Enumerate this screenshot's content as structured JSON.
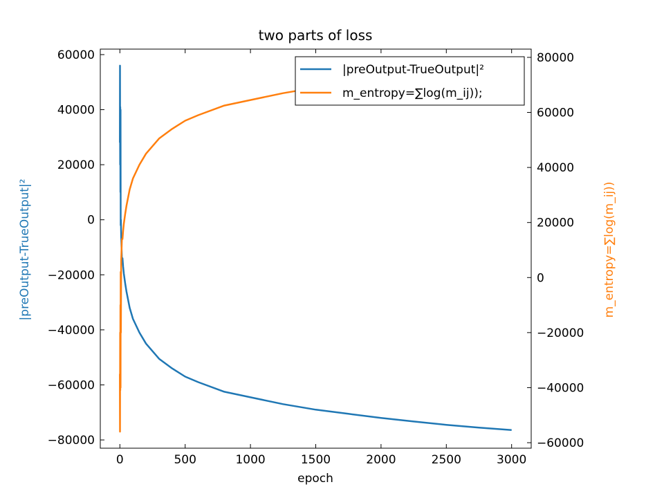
{
  "chart_data": {
    "type": "line",
    "title": "two parts of loss",
    "xlabel": "epoch",
    "xlim": [
      -150,
      3150
    ],
    "xticks": [
      0,
      500,
      1000,
      1500,
      2000,
      2500,
      3000
    ],
    "xtick_labels": [
      "0",
      "500",
      "1000",
      "1500",
      "2000",
      "2500",
      "3000"
    ],
    "y_left": {
      "label": "|preOutput-TrueOutput|²",
      "color": "#1f77b4",
      "lim": [
        -83000,
        62000
      ],
      "ticks": [
        60000,
        40000,
        20000,
        0,
        -20000,
        -40000,
        -60000,
        -80000
      ],
      "tick_labels": [
        "60000",
        "40000",
        "20000",
        "0",
        "−20000",
        "−40000",
        "−60000",
        "−80000"
      ]
    },
    "y_right": {
      "label": "m_entropy=∑log(m_ij))",
      "color": "#ff7f0e",
      "lim": [
        -62000,
        83000
      ],
      "ticks": [
        80000,
        60000,
        40000,
        20000,
        0,
        -20000,
        -40000,
        -60000
      ],
      "tick_labels": [
        "80000",
        "60000",
        "40000",
        "20000",
        "0",
        "−20000",
        "−40000",
        "−60000"
      ]
    },
    "legend": {
      "placement": "top-right"
    },
    "grid": false,
    "series": [
      {
        "name": "|preOutput-TrueOutput|²",
        "axis": "left",
        "color": "#1f77b4",
        "x": [
          0,
          1,
          2,
          3,
          4,
          5,
          6,
          8,
          10,
          12,
          15,
          20,
          25,
          30,
          40,
          50,
          75,
          100,
          150,
          200,
          300,
          400,
          500,
          600,
          800,
          1000,
          1250,
          1500,
          1750,
          2000,
          2250,
          2500,
          2750,
          3000
        ],
        "values": [
          28000,
          56000,
          20000,
          41000,
          10000,
          40000,
          -2000,
          0,
          -6000,
          -9000,
          -14000,
          -14000,
          -17000,
          -19500,
          -23000,
          -26000,
          -32000,
          -36000,
          -41000,
          -45000,
          -50500,
          -54000,
          -57000,
          -59000,
          -62500,
          -64500,
          -67000,
          -69000,
          -70500,
          -72000,
          -73300,
          -74500,
          -75500,
          -76400
        ]
      },
      {
        "name": "m_entropy=∑log(m_ij));",
        "axis": "right",
        "color": "#ff7f0e",
        "x": [
          0,
          1,
          2,
          3,
          4,
          5,
          6,
          8,
          10,
          12,
          15,
          20,
          25,
          30,
          40,
          50,
          75,
          100,
          150,
          200,
          300,
          400,
          500,
          600,
          800,
          1000,
          1250,
          1500,
          1750,
          2000,
          2250,
          2500,
          2750,
          3000
        ],
        "values": [
          -35000,
          -56000,
          -20000,
          -41000,
          -10000,
          -40000,
          2000,
          -20000,
          6000,
          9000,
          14000,
          14000,
          17000,
          19500,
          23000,
          26000,
          32000,
          36000,
          41000,
          45000,
          50500,
          54000,
          57000,
          59000,
          62500,
          64500,
          67000,
          69000,
          70500,
          72000,
          73300,
          74500,
          75500,
          76400
        ]
      }
    ]
  }
}
